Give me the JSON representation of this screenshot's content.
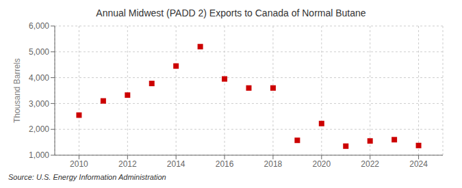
{
  "chart_data": {
    "type": "scatter",
    "title": "Annual Midwest (PADD 2) Exports to Canada of Normal Butane",
    "ylabel": "Thousand Barrels",
    "annotations": [
      "Source: U.S. Energy Information Administration"
    ],
    "x": [
      2010,
      2011,
      2012,
      2013,
      2014,
      2015,
      2016,
      2017,
      2018,
      2019,
      2020,
      2021,
      2022,
      2023,
      2024
    ],
    "values": [
      2550,
      3100,
      3325,
      3775,
      4450,
      5200,
      3950,
      3600,
      3600,
      1575,
      2225,
      1350,
      1550,
      1600,
      1375
    ],
    "color": "#cc0000",
    "marker": "square",
    "xlim": [
      2009,
      2025
    ],
    "xticks": [
      2010,
      2012,
      2014,
      2016,
      2018,
      2020,
      2022,
      2024
    ],
    "ylim": [
      1000,
      6000
    ],
    "yticks": [
      {
        "value": 1000,
        "label": "1,000"
      },
      {
        "value": 2000,
        "label": "2,000"
      },
      {
        "value": 3000,
        "label": "3,000"
      },
      {
        "value": 4000,
        "label": "4,000"
      },
      {
        "value": 5000,
        "label": "5,000"
      },
      {
        "value": 6000,
        "label": "6,000"
      }
    ],
    "grid": true
  }
}
